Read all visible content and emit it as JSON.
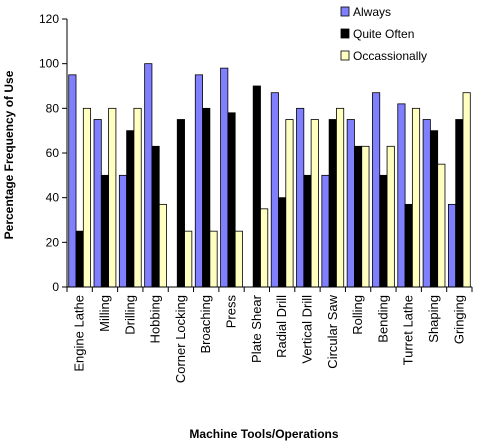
{
  "chart_data": {
    "type": "bar",
    "title": "",
    "xlabel": "Machine Tools/Operations",
    "ylabel": "Percentage Frequency of Use",
    "ylim": [
      0,
      120
    ],
    "yticks": [
      0,
      20,
      40,
      60,
      80,
      100,
      120
    ],
    "grid": false,
    "legend_position": "top-right",
    "categories": [
      "Engine Lathe",
      "Milling",
      "Drilling",
      "Hobbing",
      "Corner Locking",
      "Broaching",
      "Press",
      "Plate Shear",
      "Radial Drill",
      "Vertical Drill",
      "Circular Saw",
      "Rolling",
      "Bending",
      "Turret Lathe",
      "Shaping",
      "Gringing"
    ],
    "series": [
      {
        "name": "Always",
        "color": "#8080ff",
        "values": [
          95,
          75,
          50,
          100,
          0,
          95,
          98,
          0,
          87,
          80,
          50,
          75,
          87,
          82,
          75,
          37
        ]
      },
      {
        "name": "Quite Often",
        "color": "#000000",
        "values": [
          25,
          50,
          70,
          63,
          75,
          80,
          78,
          90,
          40,
          50,
          75,
          63,
          50,
          37,
          70,
          75
        ]
      },
      {
        "name": "Occassionally",
        "color": "#ffffc0",
        "values": [
          80,
          80,
          80,
          37,
          25,
          25,
          25,
          35,
          75,
          75,
          80,
          63,
          63,
          80,
          55,
          87
        ]
      }
    ]
  }
}
